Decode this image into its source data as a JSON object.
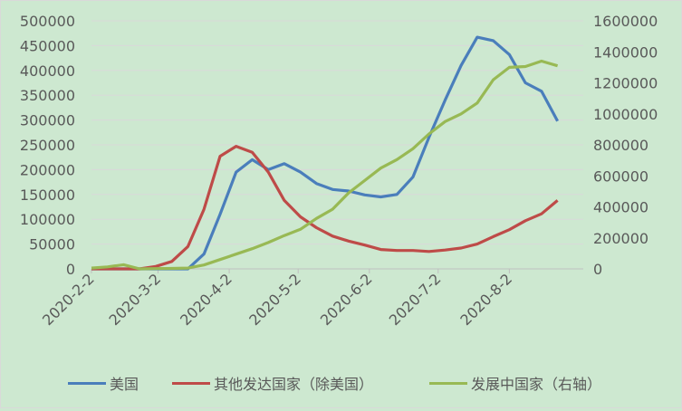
{
  "chart_data": {
    "type": "line",
    "title": "",
    "xlabel": "",
    "ylabel": "",
    "y2label": "",
    "x": [
      "2020-2-2",
      "2020-2-9",
      "2020-2-16",
      "2020-2-23",
      "2020-3-1",
      "2020-3-8",
      "2020-3-15",
      "2020-3-22",
      "2020-3-29",
      "2020-4-5",
      "2020-4-12",
      "2020-4-19",
      "2020-4-26",
      "2020-5-3",
      "2020-5-10",
      "2020-5-17",
      "2020-5-24",
      "2020-5-31",
      "2020-6-7",
      "2020-6-14",
      "2020-6-21",
      "2020-6-28",
      "2020-7-5",
      "2020-7-12",
      "2020-7-19",
      "2020-7-26",
      "2020-8-2",
      "2020-8-9",
      "2020-8-16",
      "2020-8-23",
      "2020-8-30",
      "2020-9-6"
    ],
    "x_tick_labels": [
      "2020-2-2",
      "2020-3-2",
      "2020-4-2",
      "2020-5-2",
      "2020-6-2",
      "2020-7-2",
      "2020-8-2"
    ],
    "ylim": [
      0,
      500000
    ],
    "y_ticks": [
      0,
      50000,
      100000,
      150000,
      200000,
      250000,
      300000,
      350000,
      400000,
      450000,
      500000
    ],
    "y2lim": [
      0,
      1600000
    ],
    "y2_ticks": [
      0,
      200000,
      400000,
      600000,
      800000,
      1000000,
      1200000,
      1400000,
      1600000
    ],
    "grid": true,
    "legend_position": "bottom",
    "series": [
      {
        "name": "美国",
        "axis": "left",
        "color": "#4a7ebb",
        "values": [
          0,
          0,
          0,
          0,
          0,
          0,
          0,
          30000,
          110000,
          195000,
          220000,
          200000,
          212000,
          195000,
          172000,
          160000,
          157000,
          149000,
          145000,
          150000,
          185000,
          265000,
          340000,
          410000,
          467000,
          460000,
          432000,
          375000,
          358000,
          298000,
          null,
          null
        ]
      },
      {
        "name": "其他发达国家（除美国）",
        "axis": "left",
        "color": "#be4b48",
        "values": [
          0,
          0,
          0,
          0,
          5000,
          15000,
          45000,
          120000,
          227000,
          247000,
          235000,
          195000,
          138000,
          105000,
          83000,
          66000,
          56000,
          48000,
          39000,
          37000,
          37000,
          35000,
          38000,
          42000,
          50000,
          65000,
          79000,
          97000,
          111000,
          138000,
          null,
          null
        ]
      },
      {
        "name": "发展中国家（右轴）",
        "axis": "right",
        "color": "#98b954",
        "values": [
          5000,
          13000,
          27000,
          0,
          2000,
          3000,
          5000,
          25000,
          60000,
          95000,
          130000,
          170000,
          215000,
          255000,
          325000,
          385000,
          490000,
          570000,
          650000,
          705000,
          775000,
          870000,
          950000,
          1000000,
          1070000,
          1220000,
          1300000,
          1305000,
          1340000,
          1310000,
          null,
          null
        ]
      }
    ]
  },
  "legend": {
    "items": [
      {
        "label": "美国",
        "color": "#4a7ebb"
      },
      {
        "label": "其他发达国家（除美国）",
        "color": "#be4b48"
      },
      {
        "label": "发展中国家（右轴）",
        "color": "#98b954"
      }
    ]
  }
}
